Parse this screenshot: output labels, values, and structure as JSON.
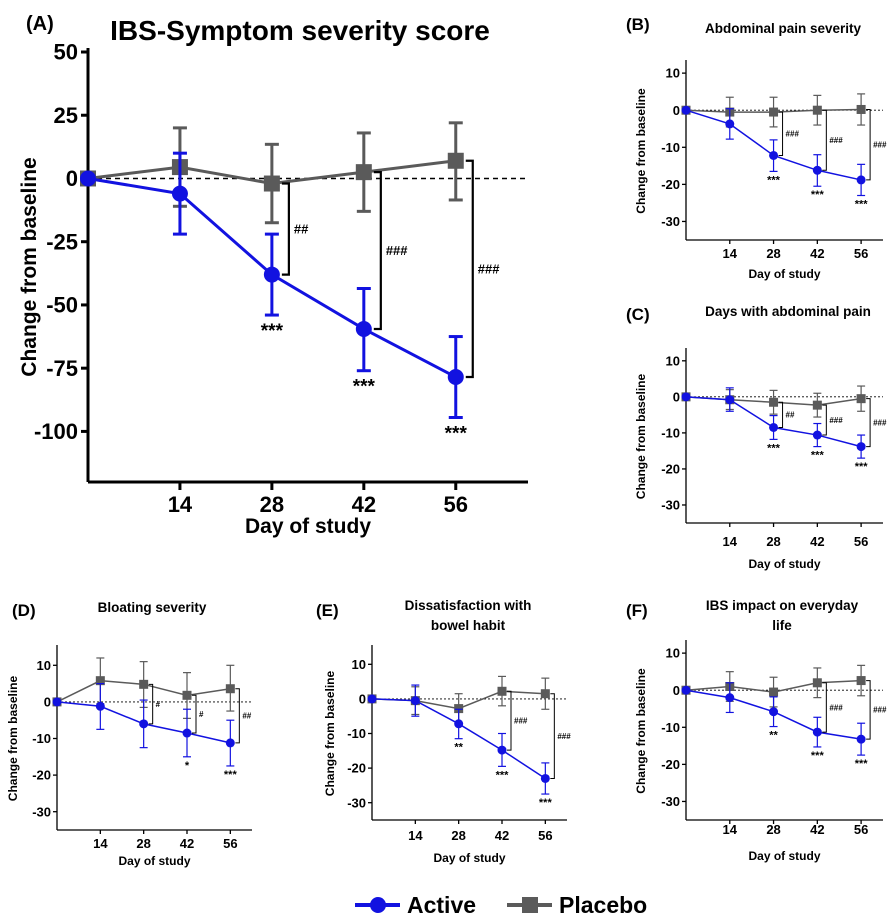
{
  "colors": {
    "active": "#1212e0",
    "placebo": "#5a5a5a",
    "axis": "#000000"
  },
  "legend": {
    "active_label": "Active",
    "placebo_label": "Placebo"
  },
  "chart_data": [
    {
      "id": "A",
      "type": "line",
      "panel_label": "(A)",
      "title": "IBS-Symptom severity score",
      "xlabel": "Day of study",
      "ylabel": "Change from baseline",
      "ylim": [
        -120,
        50
      ],
      "yticks": [
        50,
        25,
        0,
        -25,
        -50,
        -75,
        -100
      ],
      "ytick_labels": [
        "50",
        "25",
        "0",
        "-25",
        "-50",
        "-75",
        "-100"
      ],
      "xlim": [
        0,
        67
      ],
      "xticks": [
        14,
        28,
        42,
        56
      ],
      "x": [
        0,
        14,
        28,
        42,
        56
      ],
      "series": [
        {
          "name": "Active",
          "values": [
            0,
            -6,
            -38,
            -59.5,
            -78.5
          ],
          "err_low": [
            0,
            -22,
            -54,
            -76,
            -94.5
          ],
          "err_high": [
            0,
            10,
            -22,
            -43.5,
            -62.5
          ],
          "sig": [
            "",
            "",
            "***",
            "***",
            "***"
          ]
        },
        {
          "name": "Placebo",
          "values": [
            0,
            4.5,
            -2,
            2.5,
            7
          ],
          "err_low": [
            0,
            -11,
            -17.5,
            -13,
            -8.5
          ],
          "err_high": [
            0,
            20,
            13.5,
            18,
            22
          ]
        }
      ],
      "brackets": [
        {
          "x": 28,
          "top": -2,
          "bottom": -38,
          "label": "##"
        },
        {
          "x": 42,
          "top": 2.5,
          "bottom": -59.5,
          "label": "###"
        },
        {
          "x": 56,
          "top": 7,
          "bottom": -78.5,
          "label": "###"
        }
      ]
    },
    {
      "id": "B",
      "type": "line",
      "panel_label": "(B)",
      "title": "Abdominal pain severity",
      "xlabel": "Day of study",
      "ylabel": "Change from baseline",
      "ylim": [
        -35,
        13
      ],
      "yticks": [
        10,
        0,
        -10,
        -20,
        -30
      ],
      "ytick_labels": [
        "10",
        "0",
        "-10",
        "-20",
        "-30"
      ],
      "xlim": [
        0,
        63
      ],
      "xticks": [
        14,
        28,
        42,
        56
      ],
      "x": [
        0,
        14,
        28,
        42,
        56
      ],
      "series": [
        {
          "name": "Active",
          "values": [
            0,
            -3.7,
            -12.2,
            -16.2,
            -18.8
          ],
          "err_low": [
            0,
            -7.8,
            -16.5,
            -20.5,
            -23
          ],
          "err_high": [
            0,
            0.4,
            -8,
            -12,
            -14.6
          ],
          "sig": [
            "",
            "",
            "***",
            "***",
            "***"
          ]
        },
        {
          "name": "Placebo",
          "values": [
            0,
            -0.5,
            -0.5,
            0,
            0.2
          ],
          "err_low": [
            0,
            -4.5,
            -4.5,
            -4,
            -4
          ],
          "err_high": [
            0,
            3.5,
            3.5,
            4,
            4.4
          ]
        }
      ],
      "brackets": [
        {
          "x": 28,
          "top": -0.5,
          "bottom": -12.2,
          "label": "###"
        },
        {
          "x": 42,
          "top": 0,
          "bottom": -16.2,
          "label": "###"
        },
        {
          "x": 56,
          "top": 0.2,
          "bottom": -18.8,
          "label": "###"
        }
      ]
    },
    {
      "id": "C",
      "type": "line",
      "panel_label": "(C)",
      "title": "Days with abdominal pain",
      "xlabel": "Day of study",
      "ylabel": "Change from baseline",
      "ylim": [
        -35,
        13
      ],
      "yticks": [
        10,
        0,
        -10,
        -20,
        -30
      ],
      "ytick_labels": [
        "10",
        "0",
        "-10",
        "-20",
        "-30"
      ],
      "xlim": [
        0,
        63
      ],
      "xticks": [
        14,
        28,
        42,
        56
      ],
      "x": [
        0,
        14,
        28,
        42,
        56
      ],
      "series": [
        {
          "name": "Active",
          "values": [
            0,
            -0.8,
            -8.5,
            -10.6,
            -13.8
          ],
          "err_low": [
            0,
            -4,
            -11.8,
            -13.8,
            -17
          ],
          "err_high": [
            0,
            2.5,
            -5.2,
            -7.4,
            -10.6
          ],
          "sig": [
            "",
            "",
            "***",
            "***",
            "***"
          ]
        },
        {
          "name": "Placebo",
          "values": [
            0,
            -0.8,
            -1.5,
            -2.3,
            -0.5
          ],
          "err_low": [
            0,
            -3.5,
            -4.8,
            -5.6,
            -4
          ],
          "err_high": [
            0,
            2,
            1.8,
            1,
            3
          ]
        }
      ],
      "brackets": [
        {
          "x": 28,
          "top": -1.5,
          "bottom": -8.5,
          "label": "##"
        },
        {
          "x": 42,
          "top": -2.3,
          "bottom": -10.6,
          "label": "###"
        },
        {
          "x": 56,
          "top": -0.5,
          "bottom": -13.8,
          "label": "###"
        }
      ]
    },
    {
      "id": "D",
      "type": "line",
      "panel_label": "(D)",
      "title": "Bloating severity",
      "xlabel": "Day of study",
      "ylabel": "Change from baseline",
      "ylim": [
        -35,
        15
      ],
      "yticks": [
        10,
        0,
        -10,
        -20,
        -30
      ],
      "ytick_labels": [
        "10",
        "0",
        "-10",
        "-20",
        "-30"
      ],
      "xlim": [
        0,
        63
      ],
      "xticks": [
        14,
        28,
        42,
        56
      ],
      "x": [
        0,
        14,
        28,
        42,
        56
      ],
      "series": [
        {
          "name": "Active",
          "values": [
            0,
            -1.2,
            -6,
            -8.5,
            -11.2
          ],
          "err_low": [
            0,
            -7.5,
            -12.5,
            -15,
            -17.5
          ],
          "err_high": [
            0,
            5,
            0.5,
            -2,
            -5
          ],
          "sig": [
            "",
            "",
            "",
            "*",
            "***"
          ]
        },
        {
          "name": "Placebo",
          "values": [
            0,
            5.8,
            4.8,
            1.8,
            3.6
          ],
          "err_low": [
            0,
            -0.5,
            -1.5,
            -4.5,
            -2.5
          ],
          "err_high": [
            0,
            12,
            11,
            8,
            10
          ]
        }
      ],
      "brackets": [
        {
          "x": 28,
          "top": 4.8,
          "bottom": -6,
          "label": "#"
        },
        {
          "x": 42,
          "top": 1.8,
          "bottom": -8.5,
          "label": "#"
        },
        {
          "x": 56,
          "top": 3.6,
          "bottom": -11.2,
          "label": "##"
        }
      ]
    },
    {
      "id": "E",
      "type": "line",
      "panel_label": "(E)",
      "title": "Dissatisfaction with bowel habit",
      "title_lines": [
        "Dissatisfaction with",
        "bowel habit"
      ],
      "xlabel": "Day of study",
      "ylabel": "Change from baseline",
      "ylim": [
        -35,
        15
      ],
      "yticks": [
        10,
        0,
        -10,
        -20,
        -30
      ],
      "ytick_labels": [
        "10",
        "0",
        "-10",
        "-20",
        "-30"
      ],
      "xlim": [
        0,
        63
      ],
      "xticks": [
        14,
        28,
        42,
        56
      ],
      "x": [
        0,
        14,
        28,
        42,
        56
      ],
      "series": [
        {
          "name": "Active",
          "values": [
            0,
            -0.5,
            -7.2,
            -14.8,
            -23
          ],
          "err_low": [
            0,
            -5,
            -11.5,
            -19.5,
            -27.5
          ],
          "err_high": [
            0,
            4,
            -3,
            -10,
            -18.5
          ],
          "sig": [
            "",
            "",
            "**",
            "***",
            "***"
          ]
        },
        {
          "name": "Placebo",
          "values": [
            0,
            -0.5,
            -2.8,
            2.2,
            1.5
          ],
          "err_low": [
            0,
            -4.5,
            -7,
            -2,
            -3
          ],
          "err_high": [
            0,
            3.5,
            1.5,
            6.5,
            6
          ]
        }
      ],
      "brackets": [
        {
          "x": 42,
          "top": 2.2,
          "bottom": -14.8,
          "label": "###"
        },
        {
          "x": 56,
          "top": 1.5,
          "bottom": -23,
          "label": "###"
        }
      ]
    },
    {
      "id": "F",
      "type": "line",
      "panel_label": "(F)",
      "title": "IBS impact on everyday life",
      "title_lines": [
        "IBS impact on everyday",
        "life"
      ],
      "xlabel": "Day of study",
      "ylabel": "Change from baseline",
      "ylim": [
        -35,
        13
      ],
      "yticks": [
        10,
        0,
        -10,
        -20,
        -30
      ],
      "ytick_labels": [
        "10",
        "0",
        "-10",
        "-20",
        "-30"
      ],
      "xlim": [
        0,
        63
      ],
      "xticks": [
        14,
        28,
        42,
        56
      ],
      "x": [
        0,
        14,
        28,
        42,
        56
      ],
      "series": [
        {
          "name": "Active",
          "values": [
            0,
            -2,
            -5.8,
            -11.3,
            -13.2
          ],
          "err_low": [
            0,
            -6,
            -9.8,
            -15.3,
            -17.5
          ],
          "err_high": [
            0,
            2,
            -1.8,
            -7.3,
            -8.9
          ],
          "sig": [
            "",
            "",
            "**",
            "***",
            "***"
          ]
        },
        {
          "name": "Placebo",
          "values": [
            0,
            1,
            -0.5,
            2,
            2.6
          ],
          "err_low": [
            0,
            -3,
            -4.5,
            -2,
            -1.5
          ],
          "err_high": [
            0,
            5,
            3.5,
            6,
            6.7
          ]
        }
      ],
      "brackets": [
        {
          "x": 42,
          "top": 2,
          "bottom": -11.3,
          "label": "###"
        },
        {
          "x": 56,
          "top": 2.6,
          "bottom": -13.2,
          "label": "###"
        }
      ]
    }
  ]
}
